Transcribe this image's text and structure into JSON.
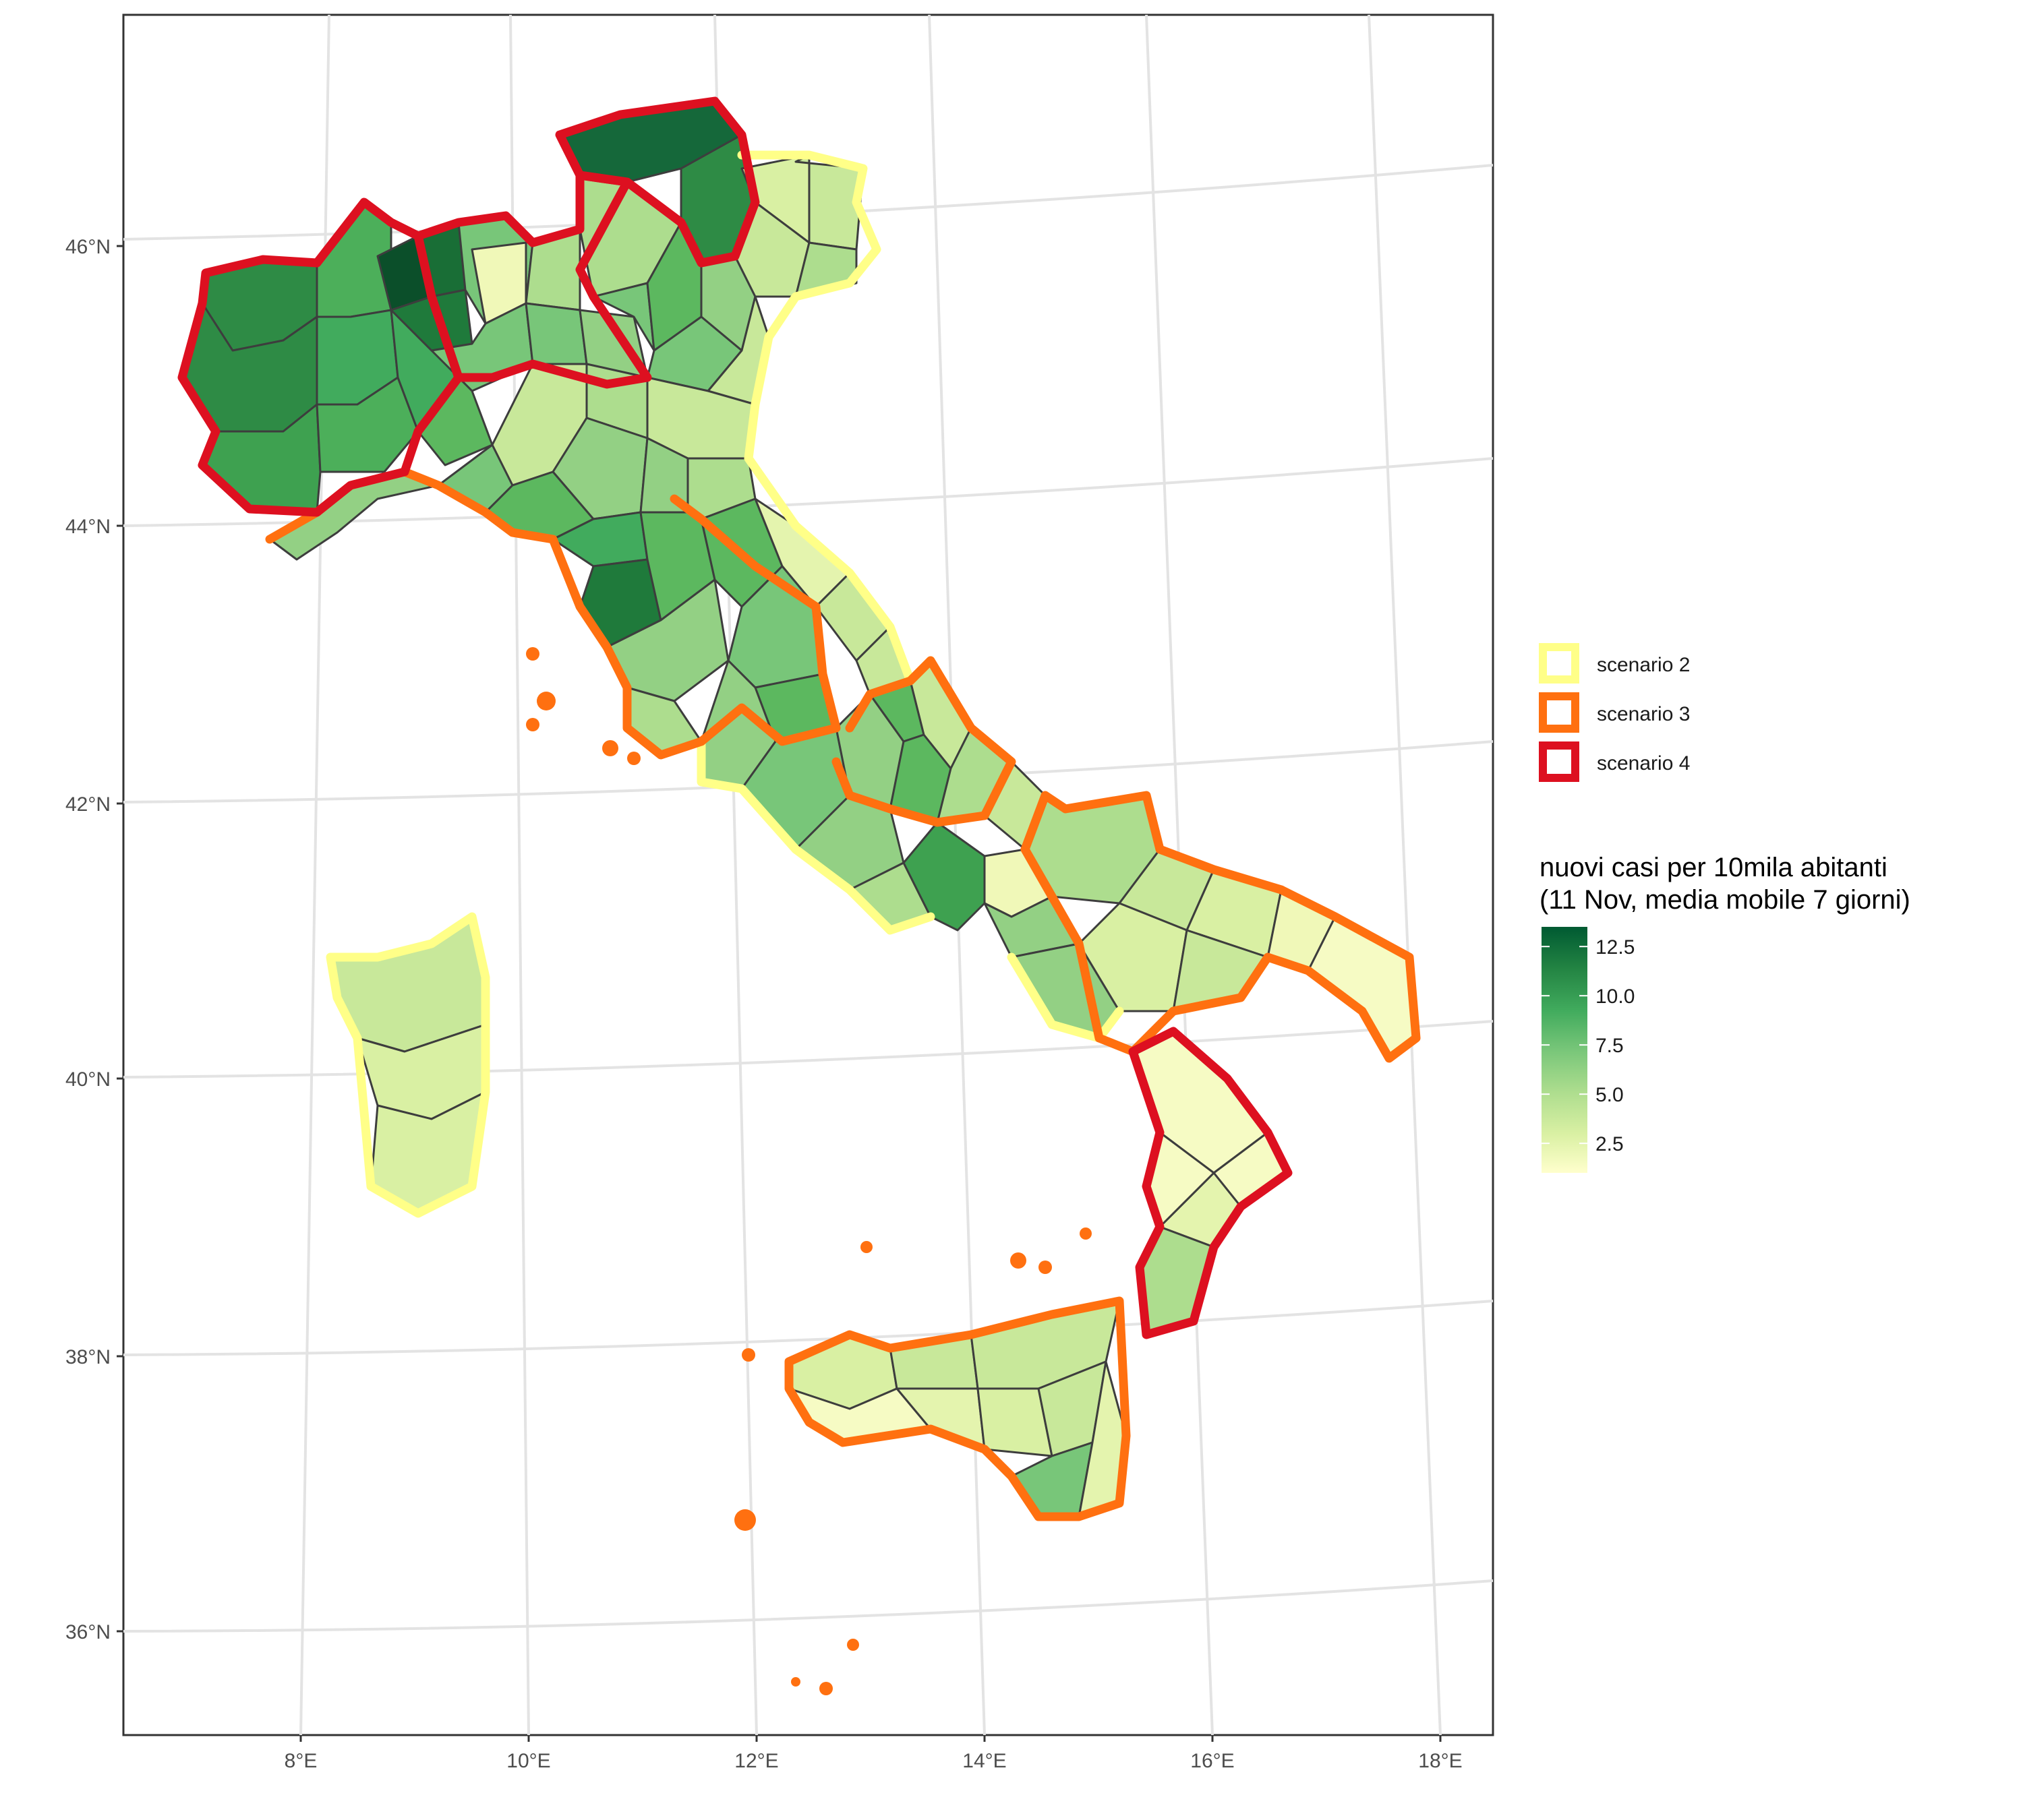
{
  "axes": {
    "x_ticks": [
      "8°E",
      "10°E",
      "12°E",
      "14°E",
      "16°E",
      "18°E"
    ],
    "y_ticks": [
      "46°N",
      "44°N",
      "42°N",
      "40°N",
      "38°N",
      "36°N"
    ]
  },
  "legend": {
    "scenarios": [
      {
        "label": "scenario 2",
        "color": "#ffff88"
      },
      {
        "label": "scenario 3",
        "color": "#ff7010"
      },
      {
        "label": "scenario 4",
        "color": "#dd1020"
      }
    ],
    "colorbar": {
      "title_line1": "nuovi casi per 10mila abitanti",
      "title_line2": "(11 Nov, media mobile 7 giorni)",
      "ticks": [
        "12.5",
        "10.0",
        "7.5",
        "5.0",
        "2.5"
      ],
      "tick_values": [
        12.5,
        10.0,
        7.5,
        5.0,
        2.5
      ],
      "range": [
        1.0,
        13.5
      ],
      "palette": [
        "#ffffcc",
        "#d9f0a3",
        "#addd8e",
        "#78c679",
        "#41ab5d",
        "#238443",
        "#005a32"
      ]
    }
  },
  "colors": {
    "scenario_2": "#ffff88",
    "scenario_3": "#ff7010",
    "scenario_4": "#dd1020",
    "province_border": "#3d3d3d",
    "graticule": "#e3e3e3"
  }
}
